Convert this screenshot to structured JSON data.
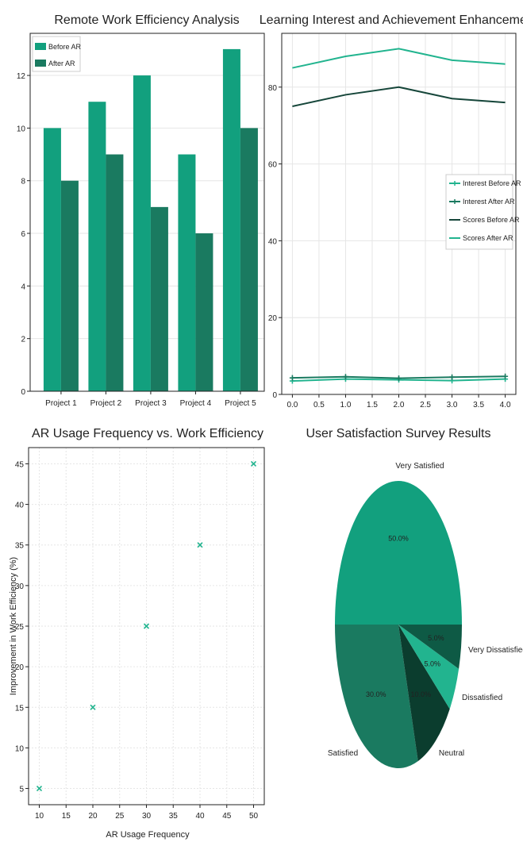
{
  "colors": {
    "teal": "#12a07e",
    "dark_teal": "#1a7a60",
    "darker": "#0e5a45",
    "darkest": "#0b3d2e",
    "line_dark": "#16463a",
    "mint": "#22b48f"
  },
  "chart_data": [
    {
      "type": "bar",
      "title": "Remote Work Efficiency Analysis",
      "categories": [
        "Project 1",
        "Project 2",
        "Project 3",
        "Project 4",
        "Project 5"
      ],
      "series": [
        {
          "name": "Before AR",
          "values": [
            10,
            11,
            12,
            9,
            13
          ]
        },
        {
          "name": "After AR",
          "values": [
            8,
            9,
            7,
            6,
            10
          ]
        }
      ],
      "ylim": [
        0,
        13.6
      ],
      "yticks": [
        0,
        2,
        4,
        6,
        8,
        10,
        12
      ],
      "legend": "top-left",
      "grid": true
    },
    {
      "type": "line",
      "title": "Learning Interest and Achievement Enhancement",
      "x": [
        0,
        1,
        2,
        3,
        4
      ],
      "series": [
        {
          "name": "Interest Before AR",
          "values": [
            3.5,
            4.0,
            3.8,
            3.6,
            4.0
          ]
        },
        {
          "name": "Interest After AR",
          "values": [
            4.3,
            4.6,
            4.2,
            4.5,
            4.7
          ]
        },
        {
          "name": "Scores Before AR",
          "values": [
            75,
            78,
            80,
            77,
            76
          ]
        },
        {
          "name": "Scores After AR",
          "values": [
            85,
            88,
            90,
            87,
            86
          ]
        }
      ],
      "xlim": [
        -0.2,
        4.2
      ],
      "ylim": [
        0,
        94
      ],
      "xticks": [
        "0.0",
        "0.5",
        "1.0",
        "1.5",
        "2.0",
        "2.5",
        "3.0",
        "3.5",
        "4.0"
      ],
      "yticks": [
        0,
        20,
        40,
        60,
        80
      ],
      "legend": "center-right",
      "grid": true
    },
    {
      "type": "scatter",
      "title": "AR Usage Frequency vs. Work Efficiency",
      "xlabel": "AR Usage Frequency",
      "ylabel": "Improvement in Work Efficiency (%)",
      "x": [
        10,
        20,
        30,
        40,
        50
      ],
      "y": [
        5,
        15,
        25,
        35,
        45
      ],
      "xlim": [
        8,
        52
      ],
      "ylim": [
        3,
        47
      ],
      "xticks": [
        10,
        15,
        20,
        25,
        30,
        35,
        40,
        45,
        50
      ],
      "yticks": [
        5,
        10,
        15,
        20,
        25,
        30,
        35,
        40,
        45
      ],
      "marker": "x",
      "grid": true
    },
    {
      "type": "pie",
      "title": "User Satisfaction Survey Results",
      "labels": [
        "Very Satisfied",
        "Satisfied",
        "Neutral",
        "Dissatisfied",
        "Very Dissatisfied"
      ],
      "values": [
        50,
        30,
        10,
        5,
        5
      ],
      "pct_labels": [
        "50.0%",
        "30.0%",
        "10.0%",
        "5.0%",
        "5.0%"
      ]
    }
  ]
}
